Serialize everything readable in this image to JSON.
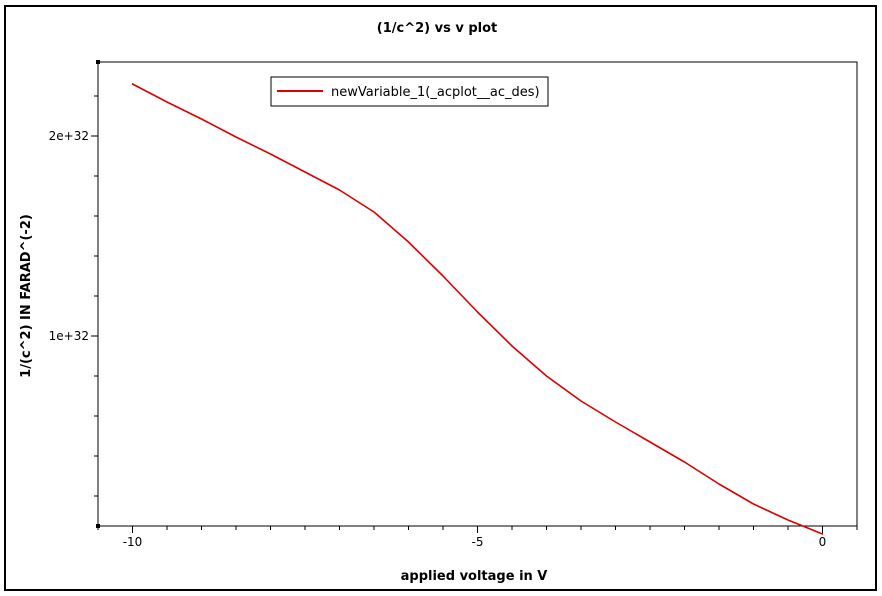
{
  "chart_data": {
    "type": "line",
    "title": "(1/c^2) vs v plot",
    "xlabel": "applied voltage in V",
    "ylabel": "1/(c^2) IN FARAD^(-2)",
    "xlim": [
      -10.5,
      0.5
    ],
    "ylim": [
      5e+30,
      2.37e+32
    ],
    "x_ticks": [
      {
        "value": -10,
        "label": "-10"
      },
      {
        "value": -5,
        "label": "-5"
      },
      {
        "value": 0,
        "label": "0"
      }
    ],
    "y_ticks": [
      {
        "value": 1e+32,
        "label": "1e+32"
      },
      {
        "value": 2e+32,
        "label": "2e+32"
      }
    ],
    "x_minor_step": 0.5,
    "y_minor_step": 2e+31,
    "grid": false,
    "legend_position": "top-left",
    "series": [
      {
        "name": "newVariable_1(_acplot__ac_des)",
        "color": "#dd0000",
        "x": [
          -10,
          -9.5,
          -9,
          -8.5,
          -8,
          -7.5,
          -7,
          -6.5,
          -6,
          -5.5,
          -5,
          -4.5,
          -4,
          -3.5,
          -3,
          -2.5,
          -2,
          -1.5,
          -1,
          -0.5,
          0
        ],
        "y": [
          2.26e+32,
          2.17e+32,
          2.085e+32,
          1.995e+32,
          1.91e+32,
          1.82e+32,
          1.73e+32,
          1.62e+32,
          1.47e+32,
          1.3e+32,
          1.12e+32,
          9.5e+31,
          8e+31,
          6.75e+31,
          5.7e+31,
          4.7e+31,
          3.7e+31,
          2.6e+31,
          1.6e+31,
          8e+30,
          1e+30
        ]
      }
    ]
  }
}
